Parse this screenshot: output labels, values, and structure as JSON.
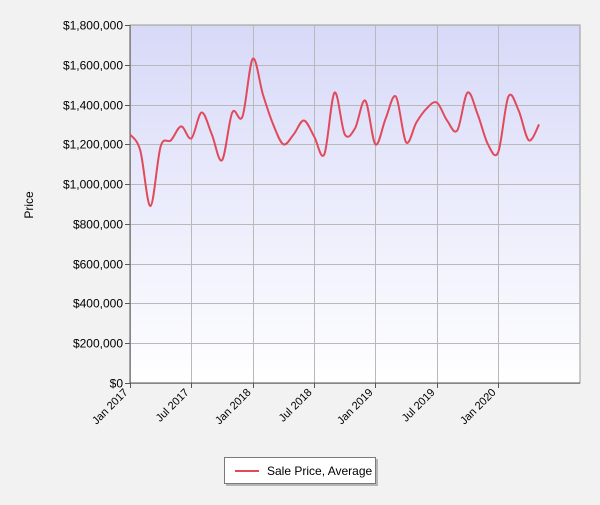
{
  "chart_data": {
    "type": "line",
    "title": "",
    "xlabel": "",
    "ylabel": "Price",
    "ylim": [
      0,
      1800000
    ],
    "x_range": [
      "2017-01",
      "2020-09"
    ],
    "grid": true,
    "legend_placement": "bottom",
    "y_ticks": [
      {
        "value": 0,
        "label": "$0"
      },
      {
        "value": 200000,
        "label": "$200,000"
      },
      {
        "value": 400000,
        "label": "$400,000"
      },
      {
        "value": 600000,
        "label": "$600,000"
      },
      {
        "value": 800000,
        "label": "$800,000"
      },
      {
        "value": 1000000,
        "label": "$1,000,000"
      },
      {
        "value": 1200000,
        "label": "$1,200,000"
      },
      {
        "value": 1400000,
        "label": "$1,400,000"
      },
      {
        "value": 1600000,
        "label": "$1,600,000"
      },
      {
        "value": 1800000,
        "label": "$1,800,000"
      }
    ],
    "x_ticks": [
      {
        "value": "2017-01",
        "label": "Jan 2017"
      },
      {
        "value": "2017-07",
        "label": "Jul 2017"
      },
      {
        "value": "2018-01",
        "label": "Jan 2018"
      },
      {
        "value": "2018-07",
        "label": "Jul 2018"
      },
      {
        "value": "2019-01",
        "label": "Jan 2019"
      },
      {
        "value": "2019-07",
        "label": "Jul 2019"
      },
      {
        "value": "2020-01",
        "label": "Jan 2020"
      }
    ],
    "series": [
      {
        "name": "Sale Price, Average",
        "color": "#e04a5b",
        "x": [
          "2017-01",
          "2017-02",
          "2017-03",
          "2017-04",
          "2017-05",
          "2017-06",
          "2017-07",
          "2017-08",
          "2017-09",
          "2017-10",
          "2017-11",
          "2017-12",
          "2018-01",
          "2018-02",
          "2018-03",
          "2018-04",
          "2018-05",
          "2018-06",
          "2018-07",
          "2018-08",
          "2018-09",
          "2018-10",
          "2018-11",
          "2018-12",
          "2019-01",
          "2019-02",
          "2019-03",
          "2019-04",
          "2019-05",
          "2019-06",
          "2019-07",
          "2019-08",
          "2019-09",
          "2019-10",
          "2019-11",
          "2019-12",
          "2020-01",
          "2020-02",
          "2020-03",
          "2020-04",
          "2020-05"
        ],
        "values": [
          1250000,
          1170000,
          890000,
          1190000,
          1220000,
          1290000,
          1230000,
          1360000,
          1250000,
          1120000,
          1360000,
          1340000,
          1630000,
          1450000,
          1300000,
          1200000,
          1250000,
          1320000,
          1240000,
          1150000,
          1460000,
          1250000,
          1280000,
          1420000,
          1200000,
          1330000,
          1440000,
          1210000,
          1310000,
          1380000,
          1410000,
          1320000,
          1270000,
          1460000,
          1350000,
          1200000,
          1160000,
          1440000,
          1370000,
          1220000,
          1300000
        ]
      }
    ]
  }
}
